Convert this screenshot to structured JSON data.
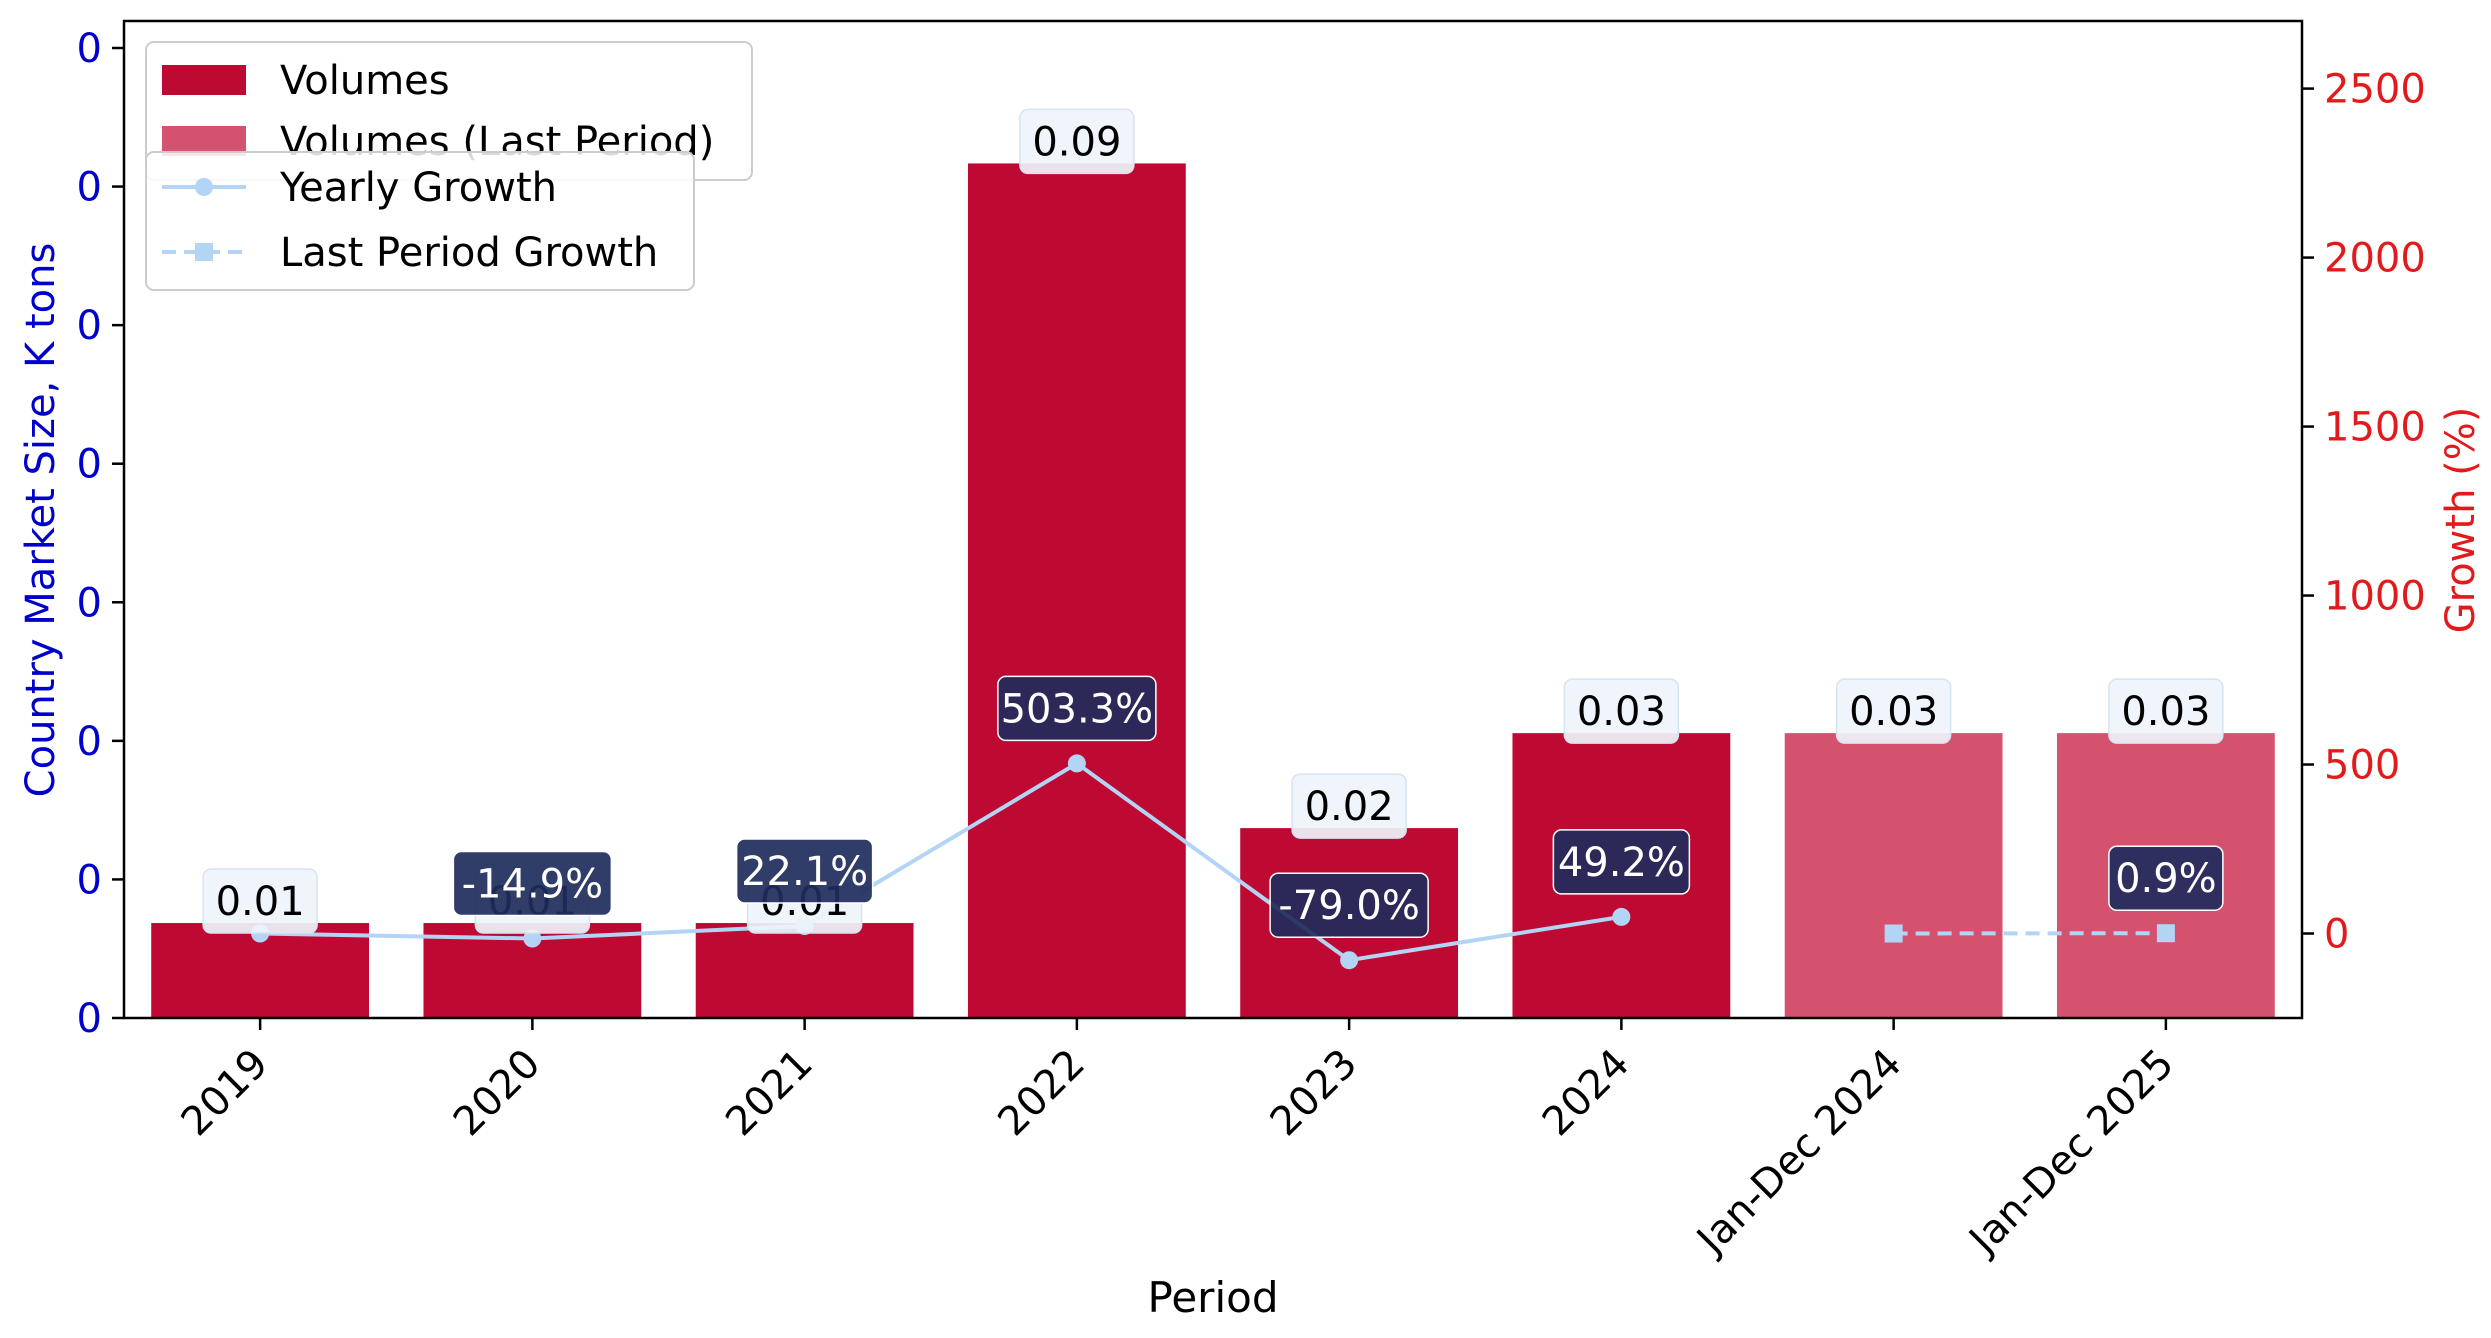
{
  "chart_data": {
    "type": "bar",
    "categories": [
      "2019",
      "2020",
      "2021",
      "2022",
      "2023",
      "2024",
      "Jan-Dec 2024",
      "Jan-Dec 2025"
    ],
    "series": [
      {
        "name": "Volumes",
        "kind": "bar",
        "axis": "left",
        "color": "#be0a32",
        "values": [
          0.01,
          0.01,
          0.01,
          0.09,
          0.02,
          0.03,
          null,
          null
        ],
        "labels": [
          "0.01",
          "0.01",
          "0.01",
          "0.09",
          "0.02",
          "0.03",
          "",
          ""
        ]
      },
      {
        "name": "Volumes (Last Period)",
        "kind": "bar",
        "axis": "left",
        "color": "#d4526e",
        "values": [
          null,
          null,
          null,
          null,
          null,
          null,
          0.03,
          0.03
        ],
        "labels": [
          "",
          "",
          "",
          "",
          "",
          "",
          "0.03",
          "0.03"
        ]
      },
      {
        "name": "Yearly Growth",
        "kind": "line",
        "axis": "right",
        "color": "#b3d4f5",
        "marker": "circle",
        "linestyle": "solid",
        "values": [
          0,
          -14.9,
          22.1,
          503.3,
          -79.0,
          49.2,
          null,
          null
        ],
        "labels": [
          "",
          "-14.9%",
          "22.1%",
          "503.3%",
          "-79.0%",
          "49.2%",
          "",
          ""
        ]
      },
      {
        "name": "Last Period Growth",
        "kind": "line",
        "axis": "right",
        "color": "#b3d4f5",
        "marker": "square",
        "linestyle": "dashed",
        "values": [
          null,
          null,
          null,
          null,
          null,
          null,
          0,
          0.9
        ],
        "labels": [
          "",
          "",
          "",
          "",
          "",
          "",
          "",
          "0.9%"
        ]
      }
    ],
    "xlabel": "Period",
    "ylabel": "Country Market Size, K tons",
    "y2label": "Growth (%)",
    "ylim": [
      0,
      0.105
    ],
    "y2lim": [
      -250,
      2700
    ],
    "y_tick_labels": [
      "0",
      "0",
      "0",
      "0",
      "0",
      "0",
      "0",
      "0"
    ],
    "y2_ticks": [
      0,
      500,
      1000,
      1500,
      2000,
      2500
    ],
    "colors": {
      "left_axis": "#0000cc",
      "right_axis": "#e31a1c",
      "bar_label_box": "#eef4fa",
      "growth_label_box": "#1f2d5c"
    },
    "grid": false,
    "legend_placement": "top-left"
  }
}
